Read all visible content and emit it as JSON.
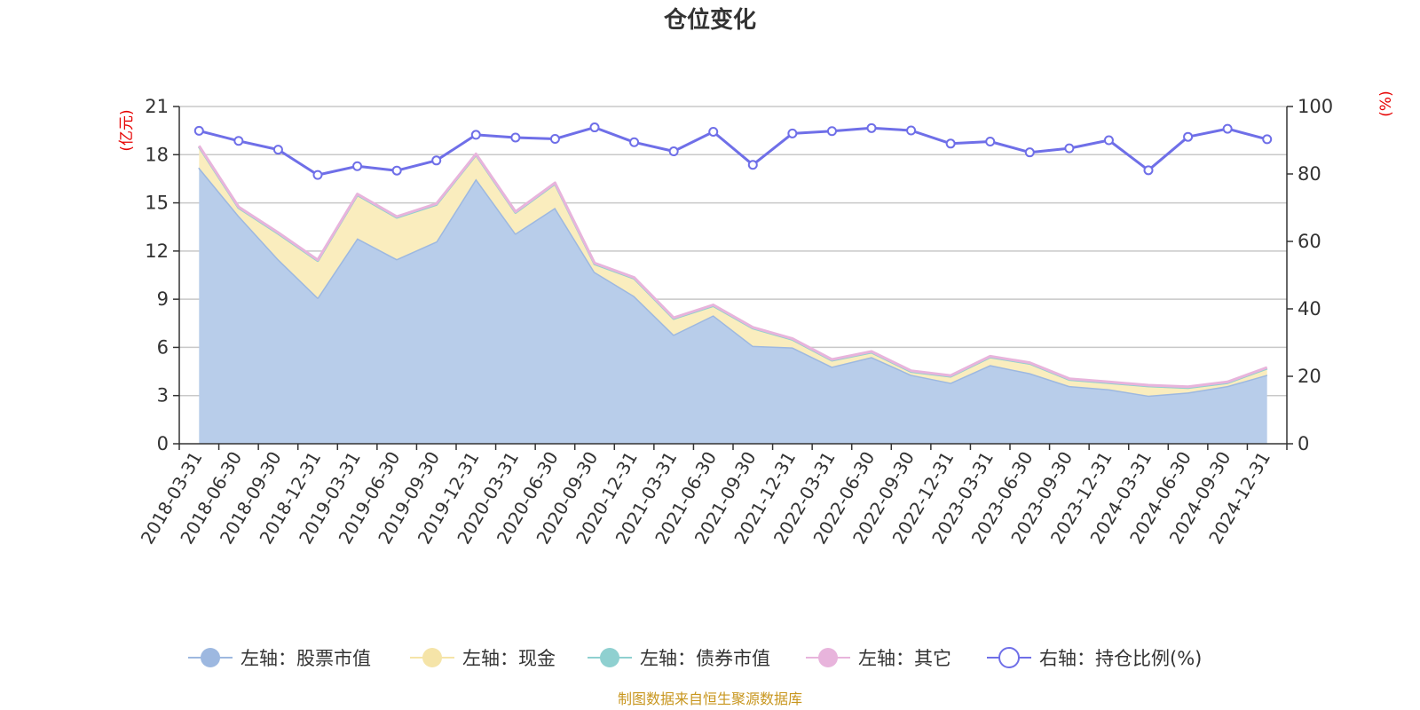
{
  "chart_data": {
    "type": "area",
    "title": "仓位变化",
    "left_unit": "(亿元)",
    "right_unit": "(%)",
    "left_ylim": [
      0,
      21
    ],
    "left_ticks": [
      0,
      3,
      6,
      9,
      12,
      15,
      18,
      21
    ],
    "right_ylim": [
      0,
      100
    ],
    "right_ticks": [
      0,
      20,
      40,
      60,
      80,
      100
    ],
    "categories": [
      "2018-03-31",
      "2018-06-30",
      "2018-09-30",
      "2018-12-31",
      "2019-03-31",
      "2019-06-30",
      "2019-09-30",
      "2019-12-31",
      "2020-03-31",
      "2020-06-30",
      "2020-09-30",
      "2020-12-31",
      "2021-03-31",
      "2021-06-30",
      "2021-09-30",
      "2021-12-31",
      "2022-03-31",
      "2022-06-30",
      "2022-09-30",
      "2022-12-31",
      "2023-03-31",
      "2023-06-30",
      "2023-09-30",
      "2023-12-31",
      "2024-03-31",
      "2024-06-30",
      "2024-09-30",
      "2024-12-31"
    ],
    "series": [
      {
        "name": "左轴：股票市值",
        "axis": "left",
        "stack": true,
        "color": "#9db8e0",
        "fill": "#b8cdea",
        "values": [
          17.2,
          14.2,
          11.5,
          9.1,
          12.8,
          11.5,
          12.6,
          16.5,
          13.1,
          14.7,
          10.7,
          9.2,
          6.8,
          8.0,
          6.1,
          6.0,
          4.8,
          5.4,
          4.3,
          3.8,
          4.9,
          4.4,
          3.6,
          3.4,
          3.0,
          3.2,
          3.6,
          4.3
        ]
      },
      {
        "name": "左轴：现金",
        "axis": "left",
        "stack": true,
        "color": "#f5e4a8",
        "fill": "#faedbe",
        "values": [
          1.3,
          0.5,
          1.6,
          2.3,
          2.7,
          2.6,
          2.3,
          1.5,
          1.3,
          1.5,
          0.5,
          1.1,
          1.0,
          0.6,
          1.1,
          0.5,
          0.4,
          0.3,
          0.2,
          0.4,
          0.5,
          0.6,
          0.4,
          0.4,
          0.6,
          0.3,
          0.2,
          0.4
        ]
      },
      {
        "name": "左轴：债券市值",
        "axis": "left",
        "stack": true,
        "color": "#8fd0d0",
        "fill": "#a8dcdc",
        "values": [
          0,
          0,
          0,
          0,
          0,
          0,
          0,
          0,
          0,
          0,
          0,
          0,
          0,
          0,
          0,
          0,
          0,
          0,
          0,
          0,
          0,
          0,
          0,
          0,
          0,
          0,
          0,
          0
        ]
      },
      {
        "name": "左轴：其它",
        "axis": "left",
        "stack": true,
        "color": "#e8b4dc",
        "fill": "#f0c8e6",
        "values": [
          0.05,
          0.05,
          0.05,
          0.05,
          0.05,
          0.05,
          0.05,
          0.05,
          0.05,
          0.05,
          0.05,
          0.05,
          0.05,
          0.05,
          0.05,
          0.05,
          0.05,
          0.05,
          0.05,
          0.05,
          0.05,
          0.05,
          0.05,
          0.05,
          0.05,
          0.05,
          0.05,
          0.05
        ]
      },
      {
        "name": "右轴：持仓比例(%)",
        "axis": "right",
        "type": "line",
        "color": "#6f6fe8",
        "values": [
          92.8,
          89.8,
          87.2,
          79.7,
          82.3,
          81.0,
          84.0,
          91.6,
          90.8,
          90.4,
          93.8,
          89.4,
          86.7,
          92.5,
          82.7,
          92.0,
          92.7,
          93.6,
          92.9,
          89.0,
          89.6,
          86.4,
          87.6,
          90.0,
          81.1,
          91.0,
          93.4,
          90.3
        ]
      }
    ],
    "legend_position": "bottom",
    "source": "制图数据来自恒生聚源数据库"
  }
}
